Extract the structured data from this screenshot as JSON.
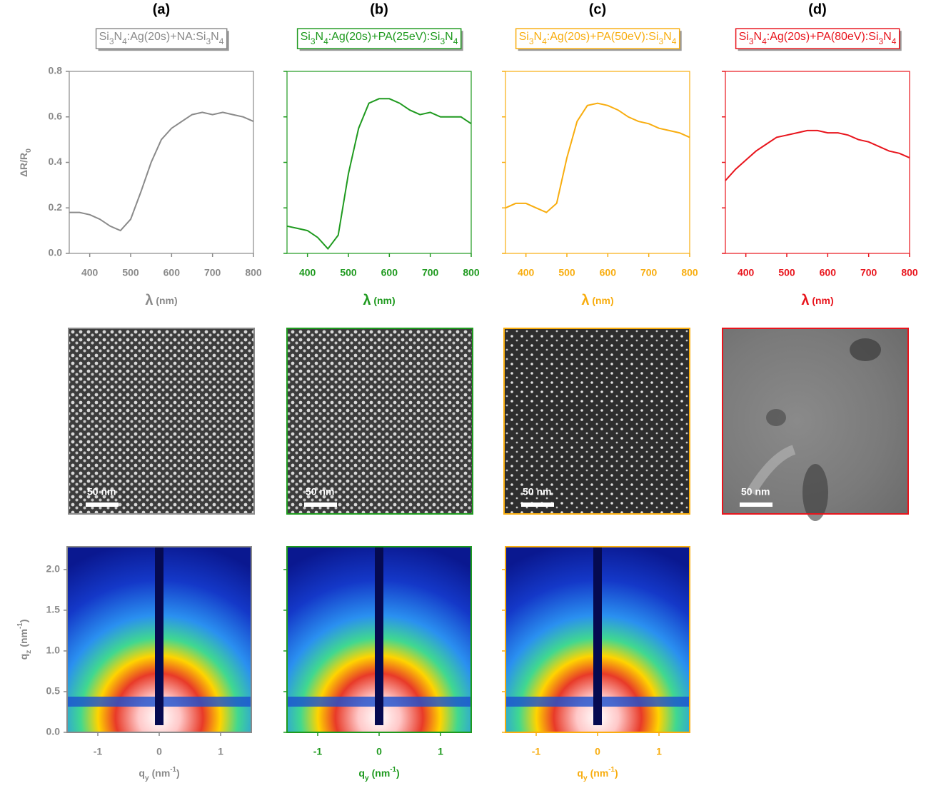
{
  "chart_data": [
    {
      "type": "line",
      "panel": "(a)",
      "title": "Si3N4:Ag(20s)+NA:Si3N4",
      "x_label": "λ (nm)",
      "y_label": "ΔR/R0",
      "x": [
        350,
        375,
        400,
        425,
        450,
        475,
        500,
        525,
        550,
        575,
        600,
        625,
        650,
        675,
        700,
        725,
        750,
        775,
        800
      ],
      "series": [
        {
          "color": "#8a8a8a",
          "values": [
            0.18,
            0.18,
            0.17,
            0.15,
            0.12,
            0.1,
            0.15,
            0.27,
            0.4,
            0.5,
            0.55,
            0.58,
            0.61,
            0.62,
            0.61,
            0.62,
            0.61,
            0.6,
            0.58
          ]
        }
      ],
      "xlim": [
        350,
        800
      ],
      "xticks": [
        400,
        500,
        600,
        700,
        800
      ],
      "ylim": [
        0,
        0.8
      ],
      "yticks": [
        {
          "value": 0,
          "label": "0.0"
        },
        0.2,
        0.4,
        0.6,
        0.8
      ],
      "ytick_labels": true
    },
    {
      "type": "line",
      "panel": "(b)",
      "title": "Si3N4:Ag(20s)+PA(25eV):Si3N4",
      "x_label": "λ (nm)",
      "x": [
        350,
        375,
        400,
        425,
        450,
        475,
        500,
        525,
        550,
        575,
        600,
        625,
        650,
        675,
        700,
        725,
        750,
        775,
        800
      ],
      "series": [
        {
          "color": "#1f9a1f",
          "values": [
            0.12,
            0.11,
            0.1,
            0.07,
            0.02,
            0.08,
            0.35,
            0.55,
            0.66,
            0.68,
            0.68,
            0.66,
            0.63,
            0.61,
            0.62,
            0.6,
            0.6,
            0.6,
            0.57
          ]
        }
      ],
      "xlim": [
        350,
        800
      ],
      "xticks": [
        400,
        500,
        600,
        700,
        800
      ],
      "ylim": [
        0,
        0.8
      ],
      "yticks": [
        {
          "value": 0,
          "label": "0.0"
        },
        0.2,
        0.4,
        0.6,
        0.8
      ],
      "ytick_labels": false
    },
    {
      "type": "line",
      "panel": "(c)",
      "title": "Si3N4:Ag(20s)+PA(50eV):Si3N4",
      "x_label": "λ (nm)",
      "x": [
        350,
        375,
        400,
        425,
        450,
        475,
        500,
        525,
        550,
        575,
        600,
        625,
        650,
        675,
        700,
        725,
        750,
        775,
        800
      ],
      "series": [
        {
          "color": "#f8ad0f",
          "values": [
            0.2,
            0.22,
            0.22,
            0.2,
            0.18,
            0.22,
            0.42,
            0.58,
            0.65,
            0.66,
            0.65,
            0.63,
            0.6,
            0.58,
            0.57,
            0.55,
            0.54,
            0.53,
            0.51
          ]
        }
      ],
      "xlim": [
        350,
        800
      ],
      "xticks": [
        400,
        500,
        600,
        700,
        800
      ],
      "ylim": [
        0,
        0.8
      ],
      "yticks": [
        {
          "value": 0,
          "label": "0.0"
        },
        0.2,
        0.4,
        0.6,
        0.8
      ],
      "ytick_labels": false
    },
    {
      "type": "line",
      "panel": "(d)",
      "title": "Si3N4:Ag(20s)+PA(80eV):Si3N4",
      "x_label": "λ (nm)",
      "x": [
        350,
        375,
        400,
        425,
        450,
        475,
        500,
        525,
        550,
        575,
        600,
        625,
        650,
        675,
        700,
        725,
        750,
        775,
        800
      ],
      "series": [
        {
          "color": "#e8141c",
          "values": [
            0.32,
            0.37,
            0.41,
            0.45,
            0.48,
            0.51,
            0.52,
            0.53,
            0.54,
            0.54,
            0.53,
            0.53,
            0.52,
            0.5,
            0.49,
            0.47,
            0.45,
            0.44,
            0.42
          ]
        }
      ],
      "xlim": [
        350,
        800
      ],
      "xticks": [
        400,
        500,
        600,
        700,
        800
      ],
      "ylim": [
        0,
        0.8
      ],
      "yticks": [
        {
          "value": 0,
          "label": "0.0"
        },
        0.2,
        0.4,
        0.6,
        0.8
      ],
      "ytick_labels": false
    },
    {
      "type": "heatmap",
      "x_label": "qy (nm-1)",
      "y_label": "qz (nm-1)",
      "color": "#8a8a8a",
      "xlim": [
        -1.5,
        1.5
      ],
      "xticks": [
        -1,
        0,
        1
      ],
      "ylim": [
        0,
        2.28
      ],
      "yticks": [
        {
          "value": 0,
          "label": "0.0"
        },
        0.5,
        {
          "value": 1,
          "label": "1.0"
        },
        1.5,
        {
          "value": 2,
          "label": "2.0"
        }
      ],
      "ytick_labels": true
    },
    {
      "type": "heatmap",
      "x_label": "qy (nm-1)",
      "color": "#1f9a1f",
      "xlim": [
        -1.5,
        1.5
      ],
      "xticks": [
        -1,
        0,
        1
      ],
      "ylim": [
        0,
        2.28
      ],
      "yticks": [
        {
          "value": 0,
          "label": "0.0"
        },
        0.5,
        {
          "value": 1,
          "label": "1.0"
        },
        1.5,
        {
          "value": 2,
          "label": "2.0"
        }
      ],
      "ytick_labels": false
    },
    {
      "type": "heatmap",
      "x_label": "qy (nm-1)",
      "color": "#f8ad0f",
      "xlim": [
        -1.5,
        1.5
      ],
      "xticks": [
        -1,
        0,
        1
      ],
      "ylim": [
        0,
        2.28
      ],
      "yticks": [
        {
          "value": 0,
          "label": "0.0"
        },
        0.5,
        {
          "value": 1,
          "label": "1.0"
        },
        1.5,
        {
          "value": 2,
          "label": "2.0"
        }
      ],
      "ytick_labels": false
    }
  ],
  "micrographs": [
    {
      "scale_label": "50 nm",
      "color": "#8a8a8a"
    },
    {
      "scale_label": "50 nm",
      "color": "#1f9a1f"
    },
    {
      "scale_label": "50 nm",
      "color": "#f8ad0f"
    },
    {
      "scale_label": "50 nm",
      "color": "#e8141c"
    }
  ]
}
